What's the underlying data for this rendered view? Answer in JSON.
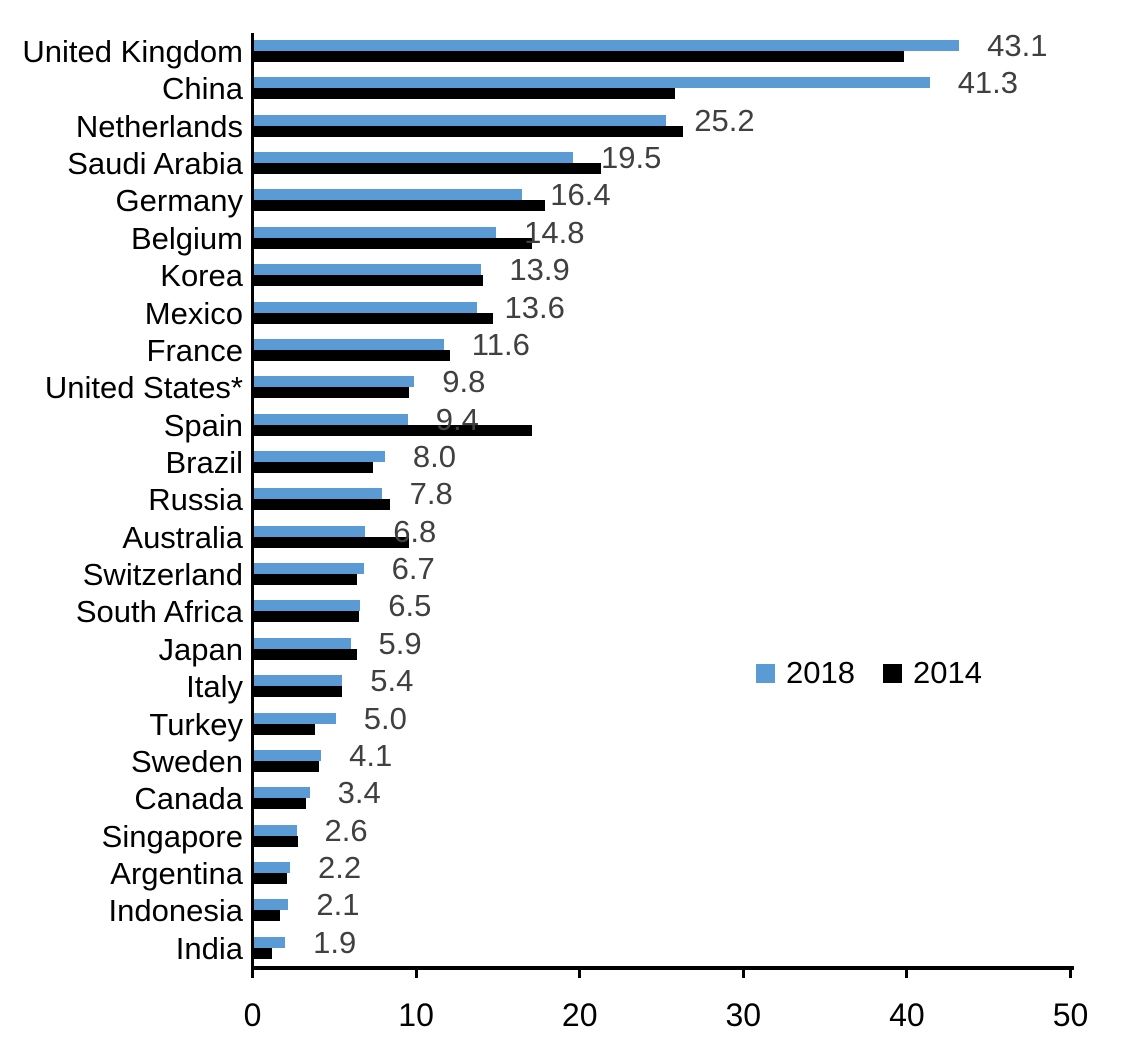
{
  "chart_data": {
    "type": "bar",
    "orientation": "horizontal",
    "title": "",
    "xlabel": "",
    "ylabel": "",
    "xlim": [
      0,
      50
    ],
    "x_ticks": [
      "0",
      "10",
      "20",
      "30",
      "40",
      "50"
    ],
    "grid": false,
    "legend_position": "middle-right",
    "data_labels": "2018 series only, dark gray, outside end of blue bar",
    "categories": [
      "United Kingdom",
      "China",
      "Netherlands",
      "Saudi Arabia",
      "Germany",
      "Belgium",
      "Korea",
      "Mexico",
      "France",
      "United States*",
      "Spain",
      "Brazil",
      "Russia",
      "Australia",
      "Switzerland",
      "South Africa",
      "Japan",
      "Italy",
      "Turkey",
      "Sweden",
      "Canada",
      "Singapore",
      "Argentina",
      "Indonesia",
      "India"
    ],
    "series": [
      {
        "name": "2018",
        "color": "#5B9BD5",
        "values": [
          43.1,
          41.3,
          25.2,
          19.5,
          16.4,
          14.8,
          13.9,
          13.6,
          11.6,
          9.8,
          9.4,
          8.0,
          7.8,
          6.8,
          6.7,
          6.5,
          5.9,
          5.4,
          5.0,
          4.1,
          3.4,
          2.6,
          2.2,
          2.1,
          1.9
        ],
        "labels": [
          "43.1",
          "41.3",
          "25.2",
          "19.5",
          "16.4",
          "14.8",
          "13.9",
          "13.6",
          "11.6",
          "9.8",
          "9.4",
          "8.0",
          "7.8",
          "6.8",
          "6.7",
          "6.5",
          "5.9",
          "5.4",
          "5.0",
          "4.1",
          "3.4",
          "2.6",
          "2.2",
          "2.1",
          "1.9"
        ]
      },
      {
        "name": "2014",
        "color": "#000000",
        "values": [
          39.7,
          25.7,
          26.2,
          21.2,
          17.8,
          17.0,
          14.0,
          14.6,
          12.0,
          9.5,
          17.0,
          7.3,
          8.3,
          9.5,
          6.3,
          6.4,
          6.3,
          5.4,
          3.7,
          4.0,
          3.2,
          2.7,
          2.0,
          1.6,
          1.1
        ]
      }
    ],
    "colors": {
      "value_label": "#404040",
      "axis": "#000000",
      "category_label": "#000000",
      "background": "#ffffff"
    }
  }
}
